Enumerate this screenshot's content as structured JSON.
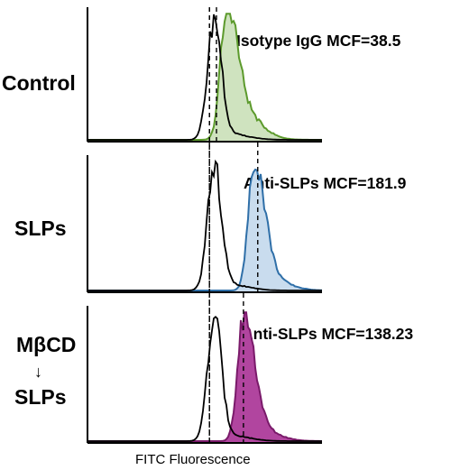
{
  "chart_data": {
    "type": "histogram_overlay",
    "xlabel": "FITC Fluorescence",
    "panels": [
      {
        "row_label_lines": [
          "Control"
        ],
        "annotation": "Isotype IgG MCF=38.5",
        "colors": {
          "reference": "#000000",
          "stroke": "#5c9a2c",
          "fill": "#cfe3bf"
        },
        "reference_peak": 0.54,
        "sample_peak": 0.59,
        "marker_lines": [
          0.52,
          0.55
        ]
      },
      {
        "row_label_lines": [
          "SLPs"
        ],
        "annotation": "Anti-SLPs  MCF=181.9",
        "colors": {
          "reference": "#000000",
          "stroke": "#2f6fa8",
          "fill": "#c9dcee"
        },
        "reference_peak": 0.54,
        "sample_peak": 0.71,
        "marker_lines": [
          0.52,
          0.726
        ]
      },
      {
        "row_label_lines": [
          "MβCD",
          "↓",
          "SLPs"
        ],
        "annotation": "Anti-SLPs MCF=138.23",
        "colors": {
          "reference": "#000000",
          "stroke": "#7a1a6a",
          "fill": "#b1459f"
        },
        "reference_peak": 0.54,
        "sample_peak": 0.665,
        "marker_lines": [
          0.52,
          0.665
        ]
      }
    ]
  }
}
